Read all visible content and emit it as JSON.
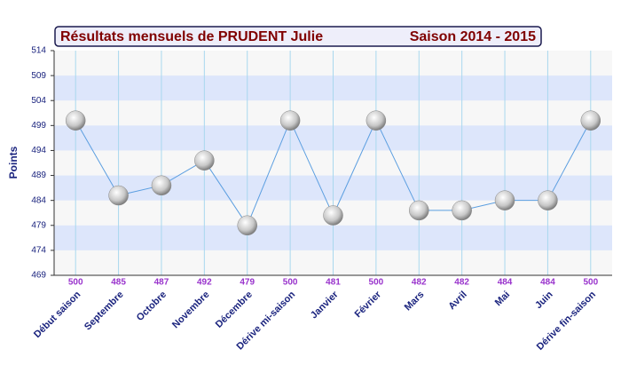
{
  "chart_data": {
    "type": "line",
    "title": "Résultats mensuels de  PRUDENT Julie",
    "subtitle": "Saison 2014 - 2015",
    "y_label": "Points",
    "categories": [
      "Début saison",
      "Septembre",
      "Octobre",
      "Novembre",
      "Décembre",
      "Dérive mi-saison",
      "Janvier",
      "Février",
      "Mars",
      "Avril",
      "Mai",
      "Juin",
      "Dérive fin-saison"
    ],
    "values": [
      500,
      485,
      487,
      492,
      479,
      500,
      481,
      500,
      482,
      482,
      484,
      484,
      500
    ],
    "color": "#5b9ee0",
    "ylim": [
      469,
      514
    ],
    "yticks": [
      469,
      474,
      479,
      484,
      489,
      494,
      499,
      504,
      509,
      514
    ],
    "grid": true
  }
}
